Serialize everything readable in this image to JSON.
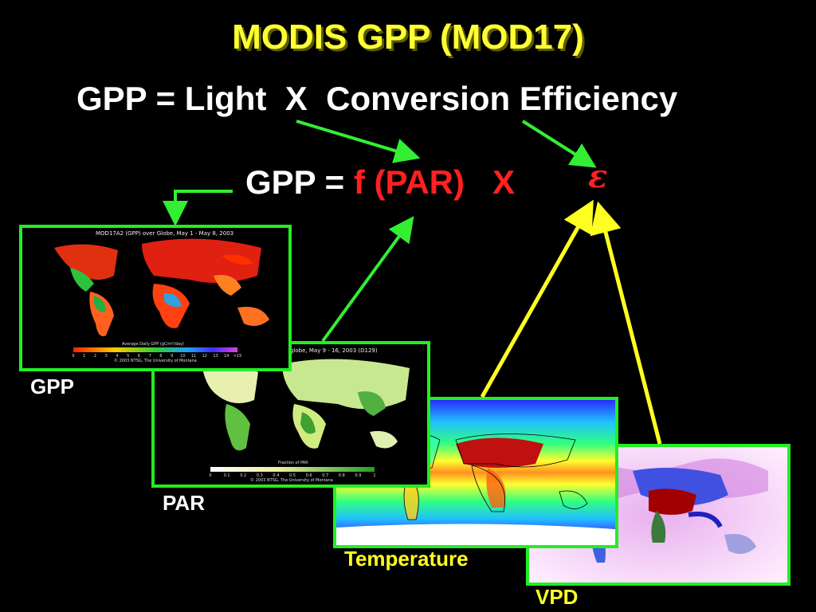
{
  "title": "MODIS GPP (MOD17)",
  "equation1": "GPP = Light  X  Conversion Efficiency",
  "equation2": {
    "prefix": "GPP = ",
    "fpar": "f (PAR)",
    "times": "X",
    "epsilon": "ε"
  },
  "panels": {
    "gpp": {
      "caption": "GPP",
      "map_title": "MOD17A2 (GPP) over Globe, May 1 - May 8, 2003",
      "legend_label": "Average Daily GPP (gC/m²/day)",
      "credit": "© 2003 NTSG, The University of Montana",
      "ticks": [
        "0",
        "1",
        "2",
        "3",
        "4",
        "5",
        "6",
        "7",
        "8",
        "9",
        "10",
        "11",
        "12",
        "13",
        "14",
        ">15"
      ]
    },
    "par": {
      "caption": "PAR",
      "map_title": "globe, May 9 - 16, 2003 (D129)",
      "legend_label": "Fraction of PAR",
      "credit": "© 2003 NTSG, The University of Montana",
      "ticks": [
        "0",
        "0.1",
        "0.2",
        "0.3",
        "0.4",
        "0.5",
        "0.6",
        "0.7",
        "0.8",
        "0.9",
        "1"
      ]
    },
    "temperature": {
      "caption": "Temperature"
    },
    "vpd": {
      "caption": "VPD"
    }
  },
  "colors": {
    "title": "#ffff33",
    "red_text": "#ff2020",
    "green_arrow": "#33ee33",
    "yellow_arrow": "#ffff22",
    "panel_border": "#22ee22"
  }
}
